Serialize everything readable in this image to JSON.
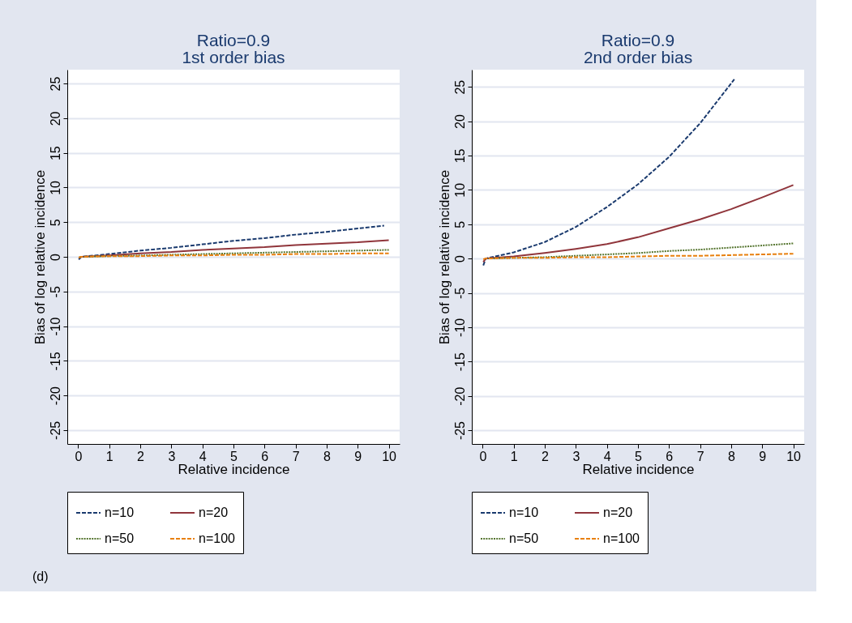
{
  "chart_data": [
    {
      "type": "line",
      "title": "Ratio=0.9",
      "subtitle": "1st order bias",
      "xlabel": "Relative incidence",
      "ylabel": "Bias of log relative incidence",
      "xlim": [
        -0.35,
        10.35
      ],
      "xticks": [
        0,
        1,
        2,
        3,
        4,
        5,
        6,
        7,
        8,
        9,
        10
      ],
      "ylim": [
        -27,
        27
      ],
      "yticks": [
        -25,
        -20,
        -15,
        -10,
        -5,
        0,
        5,
        10,
        15,
        20,
        25
      ],
      "grid": "y",
      "legend": "bottom",
      "annotations": [
        "(d)"
      ],
      "series": [
        {
          "name": "n=10",
          "color": "#1a3a6e",
          "line_style": "dashed",
          "x": [
            0.02,
            0.1,
            1,
            2,
            3,
            4,
            5,
            6,
            7,
            8,
            9,
            9.85
          ],
          "values": [
            -0.4,
            0,
            0.4,
            0.9,
            1.3,
            1.8,
            2.3,
            2.7,
            3.2,
            3.6,
            4.1,
            4.5
          ]
        },
        {
          "name": "n=20",
          "color": "#90353b",
          "line_style": "solid",
          "x": [
            0.02,
            0.1,
            1,
            2,
            3,
            4,
            5,
            6,
            7,
            8,
            9,
            10
          ],
          "values": [
            -0.2,
            0,
            0.2,
            0.5,
            0.7,
            1.0,
            1.2,
            1.4,
            1.7,
            1.9,
            2.1,
            2.4
          ]
        },
        {
          "name": "n=50",
          "color": "#55752f",
          "line_style": "dotted",
          "x": [
            0.02,
            0.1,
            1,
            2,
            3,
            4,
            5,
            6,
            7,
            8,
            9,
            10
          ],
          "values": [
            -0.1,
            0,
            0.1,
            0.2,
            0.3,
            0.4,
            0.5,
            0.6,
            0.7,
            0.8,
            0.9,
            1.0
          ]
        },
        {
          "name": "n=100",
          "color": "#e8800f",
          "line_style": "dashed",
          "x": [
            0.02,
            0.1,
            1,
            2,
            3,
            4,
            5,
            6,
            7,
            8,
            9,
            10
          ],
          "values": [
            -0.1,
            0,
            0.1,
            0.1,
            0.2,
            0.2,
            0.3,
            0.3,
            0.4,
            0.4,
            0.5,
            0.5
          ]
        }
      ]
    },
    {
      "type": "line",
      "title": "Ratio=0.9",
      "subtitle": "2nd order bias",
      "xlabel": "Relative incidence",
      "ylabel": "Bias of log relative incidence",
      "xlim": [
        -0.35,
        10.35
      ],
      "xticks": [
        0,
        1,
        2,
        3,
        4,
        5,
        6,
        7,
        8,
        9,
        10
      ],
      "ylim": [
        -27,
        27.5
      ],
      "yticks": [
        -25,
        -20,
        -15,
        -10,
        -5,
        0,
        5,
        10,
        15,
        20,
        25
      ],
      "grid": "y",
      "legend": "bottom",
      "series": [
        {
          "name": "n=10",
          "color": "#1a3a6e",
          "line_style": "dashed",
          "x": [
            0.02,
            0.1,
            1,
            2,
            3,
            4,
            5,
            6,
            7,
            8,
            8.1
          ],
          "values": [
            -1,
            0,
            0.9,
            2.4,
            4.6,
            7.5,
            10.8,
            14.8,
            19.7,
            25.5,
            26.1
          ]
        },
        {
          "name": "n=20",
          "color": "#90353b",
          "line_style": "solid",
          "x": [
            0.02,
            0.1,
            1,
            2,
            3,
            4,
            5,
            6,
            7,
            8,
            9,
            10
          ],
          "values": [
            -0.5,
            0,
            0.3,
            0.8,
            1.4,
            2.1,
            3.1,
            4.4,
            5.7,
            7.2,
            8.9,
            10.7
          ]
        },
        {
          "name": "n=50",
          "color": "#55752f",
          "line_style": "dotted",
          "x": [
            0.1,
            1,
            2,
            3,
            4,
            5,
            6,
            7,
            8,
            9,
            10
          ],
          "values": [
            0,
            0.1,
            0.2,
            0.4,
            0.6,
            0.8,
            1.1,
            1.3,
            1.6,
            1.9,
            2.2
          ]
        },
        {
          "name": "n=100",
          "color": "#e8800f",
          "line_style": "dashed",
          "x": [
            0.02,
            0.1,
            1,
            2,
            3,
            4,
            5,
            6,
            7,
            8,
            9,
            10
          ],
          "values": [
            -0.1,
            0,
            0.1,
            0.1,
            0.2,
            0.2,
            0.3,
            0.4,
            0.4,
            0.5,
            0.6,
            0.7
          ]
        }
      ]
    }
  ]
}
